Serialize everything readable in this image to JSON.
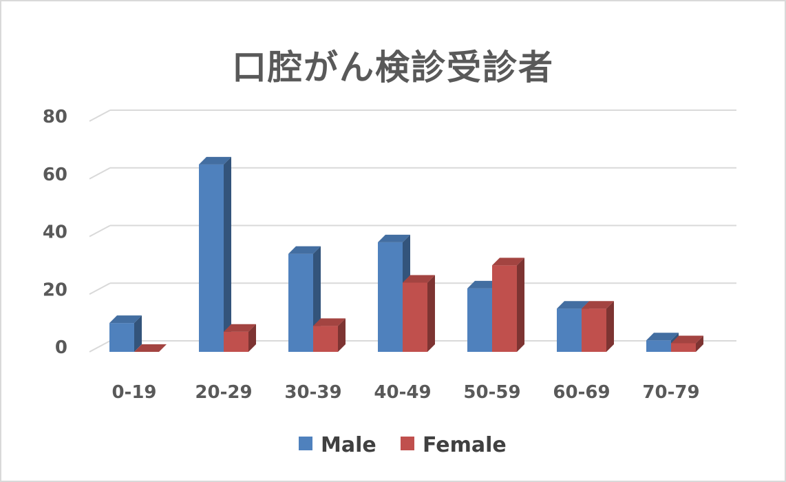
{
  "chart_data": {
    "type": "bar",
    "title": "口腔がん検診受診者",
    "categories": [
      "0-19",
      "20-29",
      "30-39",
      "40-49",
      "50-59",
      "60-69",
      "70-79"
    ],
    "series": [
      {
        "name": "Male",
        "values": [
          10,
          65,
          34,
          38,
          22,
          15,
          4
        ],
        "color": "#4f81bd"
      },
      {
        "name": "Female",
        "values": [
          0,
          7,
          9,
          24,
          30,
          15,
          3
        ],
        "color": "#c0504d"
      }
    ],
    "ylim": [
      0,
      80
    ],
    "yticks": [
      0,
      20,
      40,
      60,
      80
    ],
    "xlabel": "",
    "ylabel": "",
    "grid": true,
    "legend": "bottom",
    "style": "3d-clustered-column"
  }
}
